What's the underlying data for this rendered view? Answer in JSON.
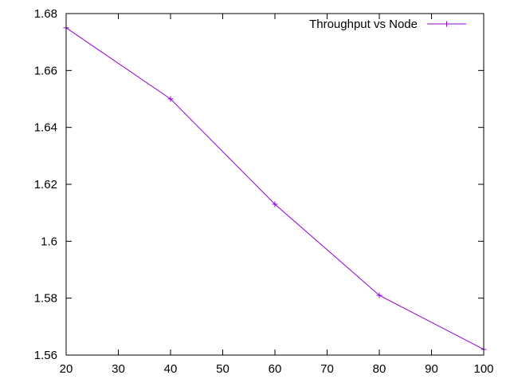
{
  "chart_data": {
    "type": "line",
    "title": "",
    "xlabel": "",
    "ylabel": "",
    "xlim": [
      20,
      100
    ],
    "ylim": [
      1.56,
      1.68
    ],
    "xticks": [
      20,
      30,
      40,
      50,
      60,
      70,
      80,
      90,
      100
    ],
    "yticks": [
      1.56,
      1.58,
      1.6,
      1.62,
      1.64,
      1.66,
      1.68
    ],
    "xtick_labels": [
      "20",
      "30",
      "40",
      "50",
      "60",
      "70",
      "80",
      "90",
      "100"
    ],
    "ytick_labels": [
      "1.56",
      "1.58",
      "1.6",
      "1.62",
      "1.64",
      "1.66",
      "1.68"
    ],
    "grid": false,
    "legend_position": "top-right",
    "series": [
      {
        "name": "Throughput vs Node",
        "color": "#9400d3",
        "marker": "plus",
        "x": [
          20,
          40,
          60,
          80,
          100
        ],
        "y": [
          1.675,
          1.65,
          1.613,
          1.581,
          1.562
        ]
      }
    ]
  }
}
